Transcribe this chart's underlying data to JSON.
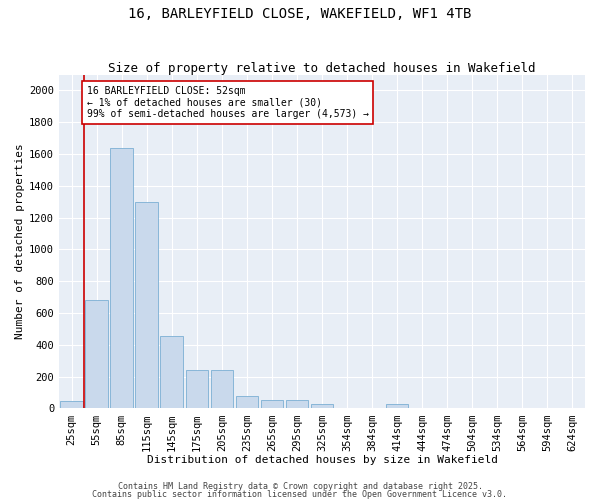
{
  "title1": "16, BARLEYFIELD CLOSE, WAKEFIELD, WF1 4TB",
  "title2": "Size of property relative to detached houses in Wakefield",
  "xlabel": "Distribution of detached houses by size in Wakefield",
  "ylabel": "Number of detached properties",
  "categories": [
    "25sqm",
    "55sqm",
    "85sqm",
    "115sqm",
    "145sqm",
    "175sqm",
    "205sqm",
    "235sqm",
    "265sqm",
    "295sqm",
    "325sqm",
    "354sqm",
    "384sqm",
    "414sqm",
    "444sqm",
    "474sqm",
    "504sqm",
    "534sqm",
    "564sqm",
    "594sqm",
    "624sqm"
  ],
  "values": [
    50,
    680,
    1640,
    1300,
    455,
    240,
    240,
    80,
    55,
    55,
    30,
    0,
    0,
    30,
    0,
    0,
    0,
    0,
    0,
    0,
    0
  ],
  "bar_color": "#c9d9ec",
  "bar_edge_color": "#7bafd4",
  "property_line_color": "#cc0000",
  "annotation_text": "16 BARLEYFIELD CLOSE: 52sqm\n← 1% of detached houses are smaller (30)\n99% of semi-detached houses are larger (4,573) →",
  "annotation_box_color": "#ffffff",
  "annotation_box_edge": "#cc0000",
  "ylim": [
    0,
    2100
  ],
  "yticks": [
    0,
    200,
    400,
    600,
    800,
    1000,
    1200,
    1400,
    1600,
    1800,
    2000
  ],
  "footer1": "Contains HM Land Registry data © Crown copyright and database right 2025.",
  "footer2": "Contains public sector information licensed under the Open Government Licence v3.0.",
  "bg_color": "#e8eef6",
  "title_fontsize": 10,
  "subtitle_fontsize": 9,
  "axis_label_fontsize": 8,
  "tick_fontsize": 7.5,
  "annotation_fontsize": 7,
  "footer_fontsize": 6
}
